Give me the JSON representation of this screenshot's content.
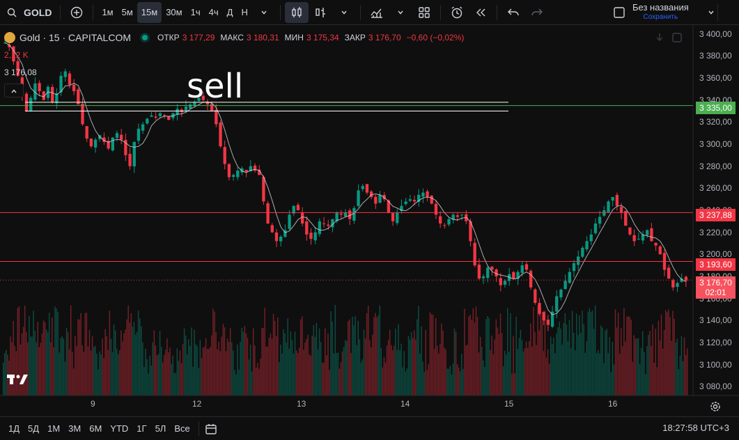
{
  "toolbar": {
    "symbol": "GOLD",
    "intervals": [
      "1м",
      "5м",
      "15м",
      "30м",
      "1ч",
      "4ч",
      "Д",
      "Н"
    ],
    "active_interval": "15м",
    "layout_name": "Без названия",
    "save_label": "Сохранить"
  },
  "legend": {
    "title": "Gold · 15 · CAPITALCOM",
    "open_label": "ОТКР",
    "open": "3 177,29",
    "high_label": "МАКС",
    "high": "3 180,31",
    "low_label": "МИН",
    "low": "3 175,34",
    "close_label": "ЗАКР",
    "close": "3 176,70",
    "change": "−0,60 (−0,02%)",
    "volume": "2,12 K",
    "last_value": "3 176,08"
  },
  "annotation": {
    "text": "sell"
  },
  "price_axis": {
    "ticks": [
      "3 400,00",
      "3 380,00",
      "3 360,00",
      "3 340,00",
      "3 320,00",
      "3 300,00",
      "3 280,00",
      "3 260,00",
      "3 240,00",
      "3 220,00",
      "3 200,00",
      "3 180,00",
      "3 160,00",
      "3 140,00",
      "3 120,00",
      "3 100,00",
      "3 080,00"
    ]
  },
  "price_tags": {
    "green": "3 335,00",
    "red1": "3 237,88",
    "red2": "3 193,60",
    "current": "3 176,70",
    "countdown": "02:01"
  },
  "time_axis": {
    "labels": [
      "9",
      "12",
      "13",
      "14",
      "15",
      "16"
    ]
  },
  "bottombar": {
    "ranges": [
      "1Д",
      "5Д",
      "1М",
      "3М",
      "6М",
      "YTD",
      "1Г",
      "5Л",
      "Все"
    ],
    "clock": "18:27:58 UTC+3"
  },
  "colors": {
    "up": "#089981",
    "down": "#f23645",
    "green_line": "#4caf50",
    "red_line": "#f23645",
    "bg": "#0f0f0f",
    "accent": "#2962ff"
  },
  "chart_data": {
    "type": "line",
    "series": [
      {
        "values": [
          3392,
          3388,
          3375,
          3362,
          3345,
          3330,
          3342,
          3355,
          3348,
          3340,
          3352,
          3338,
          3346,
          3362,
          3366,
          3354,
          3348,
          3336,
          3318,
          3305,
          3298,
          3304,
          3308,
          3302,
          3296,
          3306,
          3310,
          3304,
          3290,
          3280,
          3302,
          3314,
          3318,
          3323,
          3326,
          3324,
          3328,
          3326,
          3322,
          3328,
          3332,
          3329,
          3334,
          3336,
          3338,
          3342,
          3340,
          3336,
          3330,
          3318,
          3298,
          3282,
          3270,
          3272,
          3276,
          3278,
          3275,
          3280,
          3276,
          3272,
          3248,
          3228,
          3220,
          3212,
          3216,
          3222,
          3236,
          3244,
          3240,
          3228,
          3218,
          3214,
          3220,
          3230,
          3228,
          3226,
          3232,
          3238,
          3236,
          3238,
          3232,
          3242,
          3258,
          3262,
          3256,
          3252,
          3246,
          3254,
          3250,
          3238,
          3230,
          3238,
          3244,
          3248,
          3250,
          3248,
          3254,
          3256,
          3252,
          3246,
          3236,
          3228,
          3226,
          3232,
          3236,
          3234,
          3236,
          3230,
          3212,
          3190,
          3178,
          3180,
          3188,
          3186,
          3180,
          3172,
          3176,
          3182,
          3178,
          3184,
          3190,
          3186,
          3170,
          3156,
          3146,
          3140,
          3136,
          3148,
          3162,
          3168,
          3176,
          3184,
          3192,
          3198,
          3206,
          3212,
          3218,
          3228,
          3234,
          3240,
          3248,
          3252,
          3244,
          3238,
          3226,
          3218,
          3212,
          3214,
          3218,
          3222,
          3212,
          3208,
          3200,
          3186,
          3178,
          3170,
          3174,
          3178,
          3176
        ]
      }
    ],
    "ylim": [
      3072,
      3408
    ]
  }
}
